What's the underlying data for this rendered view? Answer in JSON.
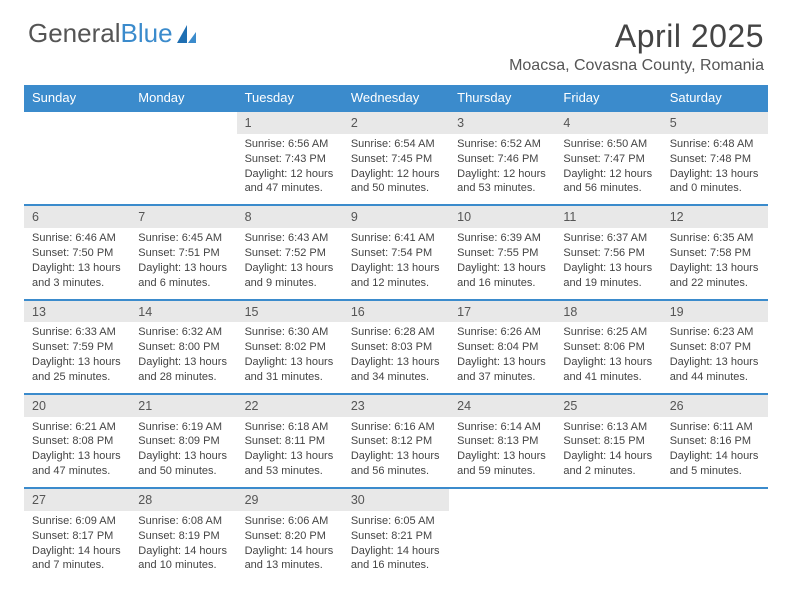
{
  "brand": {
    "part1": "General",
    "part2": "Blue"
  },
  "title": "April 2025",
  "location": "Moacsa, Covasna County, Romania",
  "colors": {
    "accent": "#3b8bcc",
    "row_header_bg": "#e8e8e8",
    "text": "#444444",
    "bg": "#ffffff"
  },
  "typography": {
    "title_fontsize": 32,
    "location_fontsize": 16,
    "dayhead_fontsize": 13,
    "cell_fontsize": 11
  },
  "day_headers": [
    "Sunday",
    "Monday",
    "Tuesday",
    "Wednesday",
    "Thursday",
    "Friday",
    "Saturday"
  ],
  "weeks": [
    [
      null,
      null,
      {
        "n": "1",
        "sr": "Sunrise: 6:56 AM",
        "ss": "Sunset: 7:43 PM",
        "dl": "Daylight: 12 hours and 47 minutes."
      },
      {
        "n": "2",
        "sr": "Sunrise: 6:54 AM",
        "ss": "Sunset: 7:45 PM",
        "dl": "Daylight: 12 hours and 50 minutes."
      },
      {
        "n": "3",
        "sr": "Sunrise: 6:52 AM",
        "ss": "Sunset: 7:46 PM",
        "dl": "Daylight: 12 hours and 53 minutes."
      },
      {
        "n": "4",
        "sr": "Sunrise: 6:50 AM",
        "ss": "Sunset: 7:47 PM",
        "dl": "Daylight: 12 hours and 56 minutes."
      },
      {
        "n": "5",
        "sr": "Sunrise: 6:48 AM",
        "ss": "Sunset: 7:48 PM",
        "dl": "Daylight: 13 hours and 0 minutes."
      }
    ],
    [
      {
        "n": "6",
        "sr": "Sunrise: 6:46 AM",
        "ss": "Sunset: 7:50 PM",
        "dl": "Daylight: 13 hours and 3 minutes."
      },
      {
        "n": "7",
        "sr": "Sunrise: 6:45 AM",
        "ss": "Sunset: 7:51 PM",
        "dl": "Daylight: 13 hours and 6 minutes."
      },
      {
        "n": "8",
        "sr": "Sunrise: 6:43 AM",
        "ss": "Sunset: 7:52 PM",
        "dl": "Daylight: 13 hours and 9 minutes."
      },
      {
        "n": "9",
        "sr": "Sunrise: 6:41 AM",
        "ss": "Sunset: 7:54 PM",
        "dl": "Daylight: 13 hours and 12 minutes."
      },
      {
        "n": "10",
        "sr": "Sunrise: 6:39 AM",
        "ss": "Sunset: 7:55 PM",
        "dl": "Daylight: 13 hours and 16 minutes."
      },
      {
        "n": "11",
        "sr": "Sunrise: 6:37 AM",
        "ss": "Sunset: 7:56 PM",
        "dl": "Daylight: 13 hours and 19 minutes."
      },
      {
        "n": "12",
        "sr": "Sunrise: 6:35 AM",
        "ss": "Sunset: 7:58 PM",
        "dl": "Daylight: 13 hours and 22 minutes."
      }
    ],
    [
      {
        "n": "13",
        "sr": "Sunrise: 6:33 AM",
        "ss": "Sunset: 7:59 PM",
        "dl": "Daylight: 13 hours and 25 minutes."
      },
      {
        "n": "14",
        "sr": "Sunrise: 6:32 AM",
        "ss": "Sunset: 8:00 PM",
        "dl": "Daylight: 13 hours and 28 minutes."
      },
      {
        "n": "15",
        "sr": "Sunrise: 6:30 AM",
        "ss": "Sunset: 8:02 PM",
        "dl": "Daylight: 13 hours and 31 minutes."
      },
      {
        "n": "16",
        "sr": "Sunrise: 6:28 AM",
        "ss": "Sunset: 8:03 PM",
        "dl": "Daylight: 13 hours and 34 minutes."
      },
      {
        "n": "17",
        "sr": "Sunrise: 6:26 AM",
        "ss": "Sunset: 8:04 PM",
        "dl": "Daylight: 13 hours and 37 minutes."
      },
      {
        "n": "18",
        "sr": "Sunrise: 6:25 AM",
        "ss": "Sunset: 8:06 PM",
        "dl": "Daylight: 13 hours and 41 minutes."
      },
      {
        "n": "19",
        "sr": "Sunrise: 6:23 AM",
        "ss": "Sunset: 8:07 PM",
        "dl": "Daylight: 13 hours and 44 minutes."
      }
    ],
    [
      {
        "n": "20",
        "sr": "Sunrise: 6:21 AM",
        "ss": "Sunset: 8:08 PM",
        "dl": "Daylight: 13 hours and 47 minutes."
      },
      {
        "n": "21",
        "sr": "Sunrise: 6:19 AM",
        "ss": "Sunset: 8:09 PM",
        "dl": "Daylight: 13 hours and 50 minutes."
      },
      {
        "n": "22",
        "sr": "Sunrise: 6:18 AM",
        "ss": "Sunset: 8:11 PM",
        "dl": "Daylight: 13 hours and 53 minutes."
      },
      {
        "n": "23",
        "sr": "Sunrise: 6:16 AM",
        "ss": "Sunset: 8:12 PM",
        "dl": "Daylight: 13 hours and 56 minutes."
      },
      {
        "n": "24",
        "sr": "Sunrise: 6:14 AM",
        "ss": "Sunset: 8:13 PM",
        "dl": "Daylight: 13 hours and 59 minutes."
      },
      {
        "n": "25",
        "sr": "Sunrise: 6:13 AM",
        "ss": "Sunset: 8:15 PM",
        "dl": "Daylight: 14 hours and 2 minutes."
      },
      {
        "n": "26",
        "sr": "Sunrise: 6:11 AM",
        "ss": "Sunset: 8:16 PM",
        "dl": "Daylight: 14 hours and 5 minutes."
      }
    ],
    [
      {
        "n": "27",
        "sr": "Sunrise: 6:09 AM",
        "ss": "Sunset: 8:17 PM",
        "dl": "Daylight: 14 hours and 7 minutes."
      },
      {
        "n": "28",
        "sr": "Sunrise: 6:08 AM",
        "ss": "Sunset: 8:19 PM",
        "dl": "Daylight: 14 hours and 10 minutes."
      },
      {
        "n": "29",
        "sr": "Sunrise: 6:06 AM",
        "ss": "Sunset: 8:20 PM",
        "dl": "Daylight: 14 hours and 13 minutes."
      },
      {
        "n": "30",
        "sr": "Sunrise: 6:05 AM",
        "ss": "Sunset: 8:21 PM",
        "dl": "Daylight: 14 hours and 16 minutes."
      },
      null,
      null,
      null
    ]
  ]
}
